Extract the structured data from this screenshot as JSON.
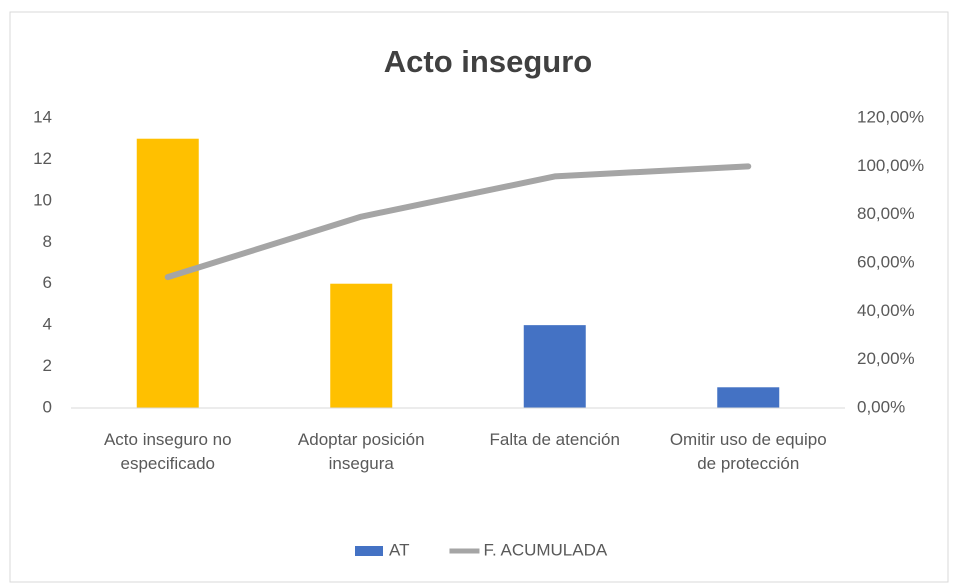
{
  "chart_data": {
    "type": "bar",
    "title": "Acto inseguro",
    "categories": [
      "Acto inseguro no especificado",
      "Adoptar posición insegura",
      "Falta de atención",
      "Omitir uso de equipo de protección"
    ],
    "series": [
      {
        "name": "AT",
        "color": "#4472c4",
        "colors": [
          "#ffc000",
          "#ffc000",
          "#4472c4",
          "#4472c4"
        ],
        "values": [
          13,
          6,
          4,
          1
        ]
      },
      {
        "name": "F. ACUMULADA",
        "color": "#a5a5a5",
        "axis": "y2",
        "type": "line",
        "values": [
          54.17,
          79.17,
          95.83,
          100
        ]
      }
    ],
    "ylim": [
      0,
      14
    ],
    "yticks": [
      0,
      2,
      4,
      6,
      8,
      10,
      12,
      14
    ],
    "y2lim": [
      0,
      120
    ],
    "y2ticks": [
      {
        "value": 0,
        "label": "0,00%"
      },
      {
        "value": 20,
        "label": "20,00%"
      },
      {
        "value": 40,
        "label": "40,00%"
      },
      {
        "value": 60,
        "label": "60,00%"
      },
      {
        "value": 80,
        "label": "80,00%"
      },
      {
        "value": 100,
        "label": "100,00%"
      },
      {
        "value": 120,
        "label": "120,00%"
      }
    ],
    "grid": false,
    "legend": "bottom"
  }
}
